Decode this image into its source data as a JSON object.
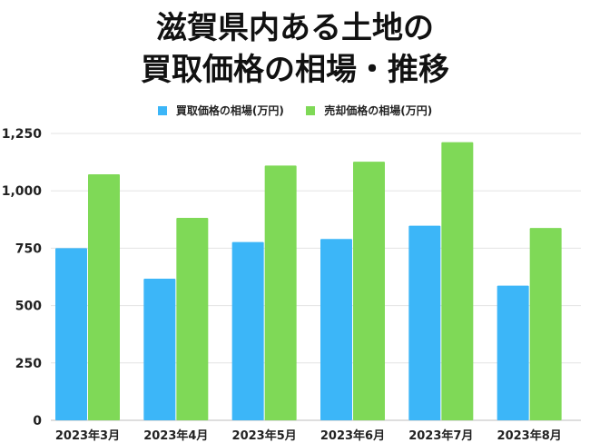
{
  "title_line1": "滋賀県内ある土地の",
  "title_line2": "買取価格の相場・推移",
  "colors": {
    "buy": "#3cb6f8",
    "sell": "#7fd957",
    "grid": "#e3e3e3"
  },
  "chart_data": {
    "type": "bar",
    "categories": [
      "2023年3月",
      "2023年4月",
      "2023年5月",
      "2023年6月",
      "2023年7月",
      "2023年8月"
    ],
    "series": [
      {
        "name": "買取価格の相場(万円)",
        "values": [
          750,
          617,
          777,
          790,
          848,
          587
        ]
      },
      {
        "name": "売却価格の相場(万円)",
        "values": [
          1072,
          882,
          1110,
          1127,
          1212,
          838
        ]
      }
    ],
    "ylim": [
      0,
      1250
    ],
    "yticks": [
      "0",
      "250",
      "500",
      "750",
      "1,000",
      "1,250"
    ],
    "ytick_values": [
      0,
      250,
      500,
      750,
      1000,
      1250
    ],
    "grid": true,
    "legend": "top"
  }
}
